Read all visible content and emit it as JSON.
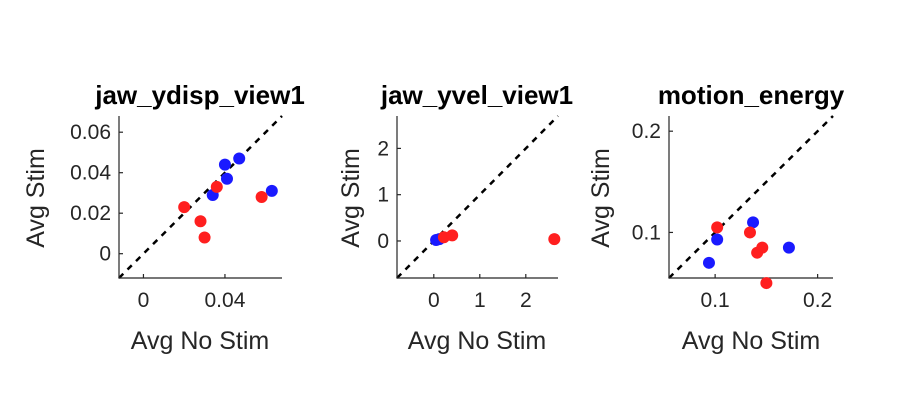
{
  "colors": {
    "blue": "#1a1aff",
    "red": "#ff1f1f"
  },
  "chart_data": [
    {
      "type": "scatter",
      "title": "jaw_ydisp_view1",
      "xlabel": "Avg No Stim",
      "ylabel": "Avg Stim",
      "xlim": [
        -0.012,
        0.068
      ],
      "ylim": [
        -0.012,
        0.068
      ],
      "xticks": [
        0,
        0.04
      ],
      "xtick_labels": [
        "0",
        "0.04"
      ],
      "yticks": [
        0,
        0.02,
        0.04,
        0.06
      ],
      "ytick_labels": [
        "0",
        "0.02",
        "0.04",
        "0.06"
      ],
      "diagonal": true,
      "grid": false,
      "series": [
        {
          "color": "blue",
          "points": [
            [
              0.034,
              0.029
            ],
            [
              0.04,
              0.044
            ],
            [
              0.041,
              0.037
            ],
            [
              0.047,
              0.047
            ],
            [
              0.063,
              0.031
            ]
          ]
        },
        {
          "color": "red",
          "points": [
            [
              0.02,
              0.023
            ],
            [
              0.028,
              0.016
            ],
            [
              0.03,
              0.008
            ],
            [
              0.036,
              0.033
            ],
            [
              0.058,
              0.028
            ]
          ]
        }
      ]
    },
    {
      "type": "scatter",
      "title": "jaw_yvel_view1",
      "xlabel": "Avg No Stim",
      "ylabel": "Avg Stim",
      "xlim": [
        -0.8,
        2.7
      ],
      "ylim": [
        -0.8,
        2.7
      ],
      "xticks": [
        0,
        1,
        2
      ],
      "xtick_labels": [
        "0",
        "1",
        "2"
      ],
      "yticks": [
        0,
        1,
        2
      ],
      "ytick_labels": [
        "0",
        "1",
        "2"
      ],
      "diagonal": true,
      "grid": false,
      "series": [
        {
          "color": "blue",
          "points": [
            [
              0.05,
              0.02
            ],
            [
              0.12,
              0.04
            ]
          ]
        },
        {
          "color": "red",
          "points": [
            [
              0.22,
              0.08
            ],
            [
              0.4,
              0.12
            ],
            [
              2.62,
              0.04
            ]
          ]
        }
      ]
    },
    {
      "type": "scatter",
      "title": "motion_energy",
      "xlabel": "Avg No Stim",
      "ylabel": "Avg Stim",
      "xlim": [
        0.055,
        0.215
      ],
      "ylim": [
        0.055,
        0.215
      ],
      "xticks": [
        0.1,
        0.2
      ],
      "xtick_labels": [
        "0.1",
        "0.2"
      ],
      "yticks": [
        0.1,
        0.2
      ],
      "ytick_labels": [
        "0.1",
        "0.2"
      ],
      "diagonal": true,
      "grid": false,
      "series": [
        {
          "color": "blue",
          "points": [
            [
              0.094,
              0.07
            ],
            [
              0.102,
              0.093
            ],
            [
              0.137,
              0.11
            ],
            [
              0.172,
              0.085
            ]
          ]
        },
        {
          "color": "red",
          "points": [
            [
              0.102,
              0.105
            ],
            [
              0.134,
              0.1
            ],
            [
              0.141,
              0.08
            ],
            [
              0.146,
              0.085
            ],
            [
              0.15,
              0.05
            ]
          ]
        }
      ]
    }
  ]
}
